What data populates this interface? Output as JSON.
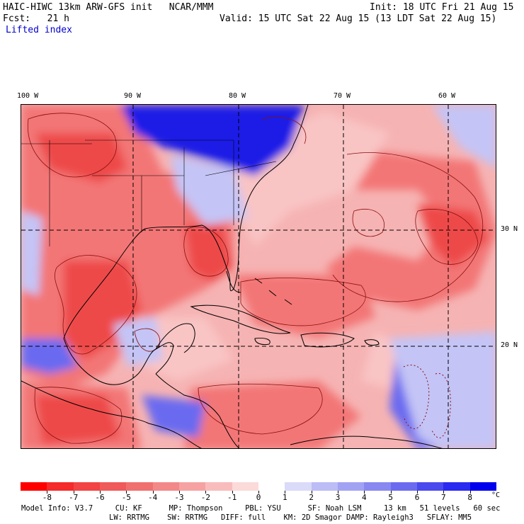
{
  "header": {
    "title": "HAIC-HIWC 13km ARW-GFS init   NCAR/MMM",
    "init": "Init: 18 UTC Fri 21 Aug 15",
    "fcst": "Fcst:   21 h",
    "valid": "Valid: 15 UTC Sat 22 Aug 15 (13 LDT Sat 22 Aug 15)",
    "field": "Lifted index"
  },
  "map": {
    "lon_labels": [
      "100 W",
      "90 W",
      "80 W",
      "70 W",
      "60 W"
    ],
    "lat_labels": [
      "30 N",
      "20 N"
    ],
    "colors": {
      "background": "#f6b3b3",
      "warm_strong": "#ee4a4a",
      "warm_medium": "#f37676",
      "warm_light": "#f9c4c4",
      "cool_strong": "#1a1ae6",
      "cool_medium": "#6a6af0",
      "cool_light": "#c4c4f6",
      "contour": "#8a0f0f",
      "coast": "#000000"
    }
  },
  "legend": {
    "ticks": [
      "-8",
      "-7",
      "-6",
      "-5",
      "-4",
      "-3",
      "-2",
      "-1",
      "0",
      "1",
      "2",
      "3",
      "4",
      "5",
      "6",
      "7",
      "8"
    ],
    "unit": "°C",
    "colors": [
      "#ff0000",
      "#f52a2a",
      "#f24444",
      "#f05a5a",
      "#f07070",
      "#f38888",
      "#f6a2a2",
      "#f9bcbc",
      "#fcdada",
      "#ffffff",
      "#dadaf9",
      "#bcbcf6",
      "#a2a2f3",
      "#8888f0",
      "#6b6bef",
      "#4a4aee",
      "#2a2af0",
      "#0000ee"
    ]
  },
  "model_info": {
    "line1": "Model Info: V3.7     CU: KF      MP: Thompson     PBL: YSU      SF: Noah LSM     13 km   51 levels   60 sec",
    "line2": "LW: RRTMG    SW: RRTMG   DIFF: full    KM: 2D Smagor DAMP: Rayleigh3   SFLAY: MM5"
  }
}
